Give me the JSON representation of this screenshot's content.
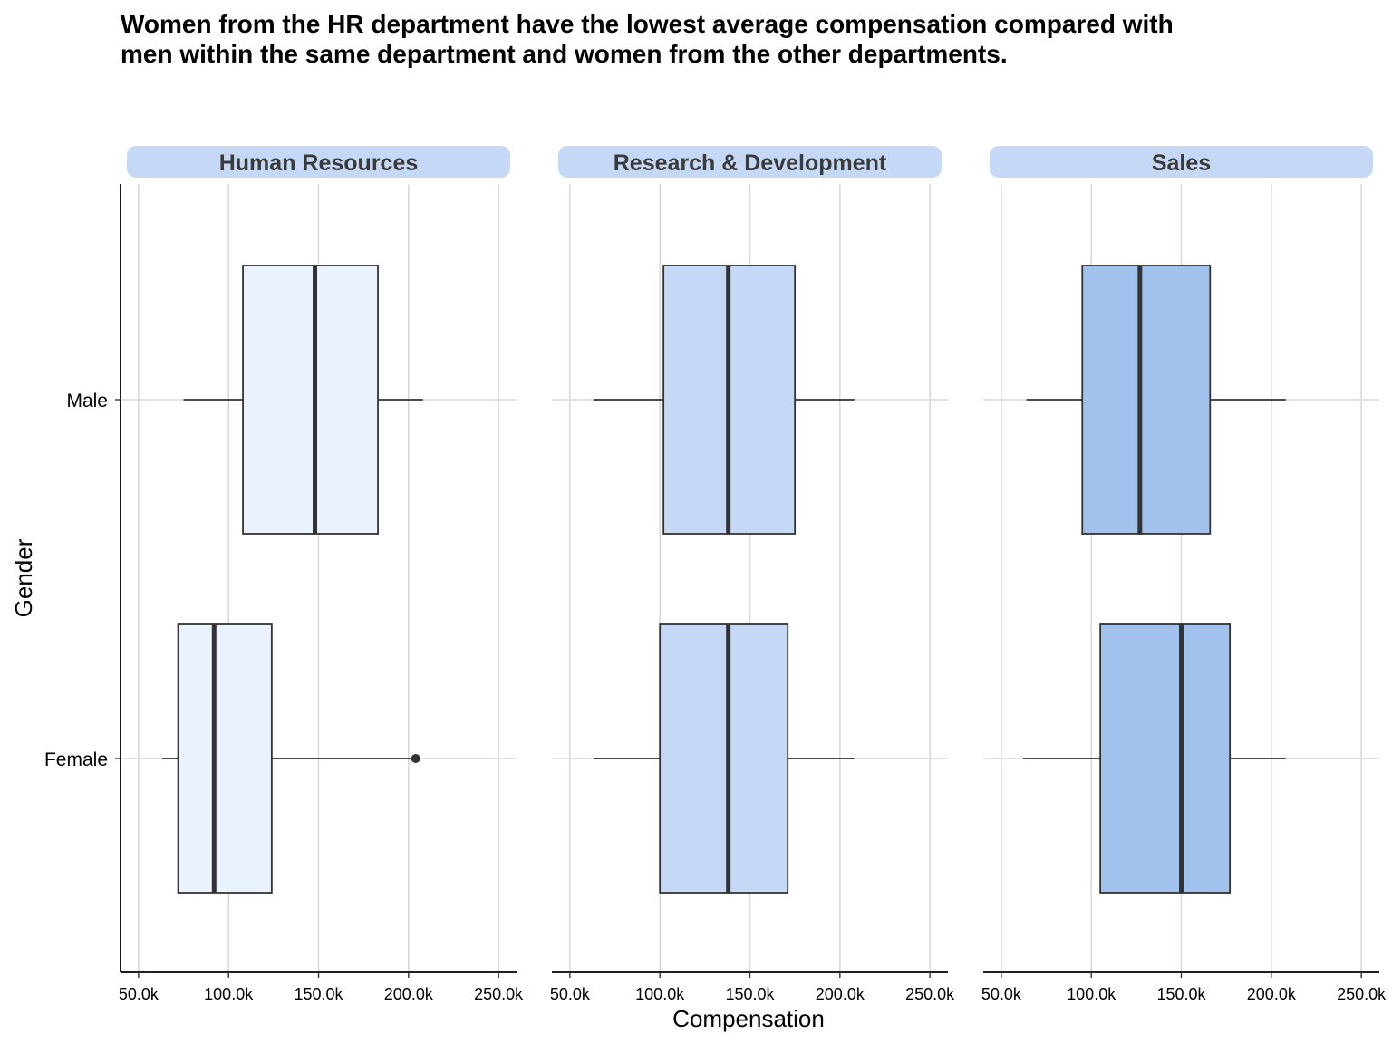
{
  "title": "Women from the HR department have the lowest average compensation compared with men within the same department and women from the other departments.",
  "chart_data": {
    "type": "boxplot",
    "title": "Women from the HR department have the lowest average compensation compared with men within the same department and women from the other departments.",
    "xlabel": "Compensation",
    "ylabel": "Gender",
    "xlim": [
      40000,
      260000
    ],
    "x_ticks": [
      50000,
      100000,
      150000,
      200000,
      250000
    ],
    "x_tick_labels": [
      "50.0k",
      "100.0k",
      "150.0k",
      "200.0k",
      "250.0k"
    ],
    "categories": [
      "Male",
      "Female"
    ],
    "grid": true,
    "facets": [
      {
        "name": "Human Resources",
        "fill": "#EAF2FE",
        "boxes": [
          {
            "group": "Male",
            "min": 75000,
            "q1": 108000,
            "median": 148000,
            "q3": 183000,
            "max": 208000,
            "outliers": []
          },
          {
            "group": "Female",
            "min": 63000,
            "q1": 72000,
            "median": 92000,
            "q3": 124000,
            "max": 203000,
            "outliers": [
              204000
            ]
          }
        ]
      },
      {
        "name": "Research & Development",
        "fill": "#C5D9F6",
        "boxes": [
          {
            "group": "Male",
            "min": 63000,
            "q1": 102000,
            "median": 138000,
            "q3": 175000,
            "max": 208000,
            "outliers": []
          },
          {
            "group": "Female",
            "min": 63000,
            "q1": 100000,
            "median": 138000,
            "q3": 171000,
            "max": 208000,
            "outliers": []
          }
        ]
      },
      {
        "name": "Sales",
        "fill": "#A1C2EC",
        "boxes": [
          {
            "group": "Male",
            "min": 64000,
            "q1": 95000,
            "median": 127000,
            "q3": 166000,
            "max": 208000,
            "outliers": []
          },
          {
            "group": "Female",
            "min": 62000,
            "q1": 105000,
            "median": 150000,
            "q3": 177000,
            "max": 208000,
            "outliers": []
          }
        ]
      }
    ],
    "colors": {
      "strip": "#C5D9F6",
      "grid": "#D9D9D9",
      "box_line": "#333333",
      "strip_text": "#3A3A3A"
    }
  }
}
